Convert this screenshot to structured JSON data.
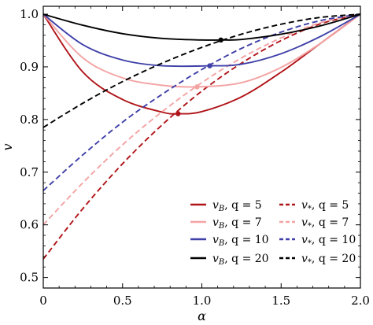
{
  "chart_data": {
    "type": "line",
    "xlabel": "α",
    "ylabel": "v",
    "xlim": [
      0,
      2.0
    ],
    "ylim": [
      0.48,
      1.015
    ],
    "xticks": [
      "0",
      "0.5",
      "1.0",
      "1.5",
      "2.0"
    ],
    "yticks": [
      "0.5",
      "0.6",
      "0.7",
      "0.8",
      "0.9",
      "1.0"
    ],
    "xtick_values": [
      0,
      0.5,
      1.0,
      1.5,
      2.0
    ],
    "ytick_values": [
      0.5,
      0.6,
      0.7,
      0.8,
      0.9,
      1.0
    ],
    "grid": false,
    "legend_position": "bottom-right",
    "series": [
      {
        "name": "v_B, q = 5",
        "legend": [
          "v",
          "B",
          ", q = 5"
        ],
        "style": "solid",
        "color": "#b01418",
        "x": [
          0,
          0.25,
          0.5,
          0.75,
          0.85,
          1.0,
          1.25,
          1.5,
          1.75,
          2.0
        ],
        "y": [
          1.0,
          0.89,
          0.838,
          0.814,
          0.811,
          0.815,
          0.843,
          0.89,
          0.945,
          1.0
        ],
        "marker": {
          "x": 0.85,
          "y": 0.811
        }
      },
      {
        "name": "v_*, q = 5",
        "legend": [
          "v",
          "*",
          ", q = 5"
        ],
        "style": "dashed",
        "color": "#b01418",
        "x": [
          0,
          0.25,
          0.5,
          0.75,
          1.0,
          1.25,
          1.5,
          1.75,
          2.0
        ],
        "y": [
          0.535,
          0.631,
          0.716,
          0.79,
          0.854,
          0.907,
          0.95,
          0.982,
          1.0
        ]
      },
      {
        "name": "v_B, q = 7",
        "legend": [
          "v",
          "B",
          ", q = 7"
        ],
        "style": "solid",
        "color": "#f4a3a3",
        "x": [
          0,
          0.25,
          0.5,
          0.75,
          0.97,
          1.25,
          1.5,
          1.75,
          2.0
        ],
        "y": [
          1.0,
          0.917,
          0.879,
          0.865,
          0.862,
          0.87,
          0.899,
          0.945,
          1.0
        ],
        "marker": {
          "x": 0.97,
          "y": 0.862
        }
      },
      {
        "name": "v_*, q = 7",
        "legend": [
          "v",
          "*",
          ", q = 7"
        ],
        "style": "dashed",
        "color": "#f4a3a3",
        "x": [
          0,
          0.25,
          0.5,
          0.75,
          1.0,
          1.25,
          1.5,
          1.75,
          2.0
        ],
        "y": [
          0.6,
          0.68,
          0.752,
          0.815,
          0.87,
          0.917,
          0.955,
          0.984,
          1.0
        ]
      },
      {
        "name": "v_B, q = 10",
        "legend": [
          "v",
          "B",
          ", q = 10"
        ],
        "style": "solid",
        "color": "#3f40a8",
        "x": [
          0,
          0.25,
          0.5,
          0.75,
          1.05,
          1.25,
          1.5,
          1.75,
          2.0
        ],
        "y": [
          1.0,
          0.942,
          0.913,
          0.902,
          0.902,
          0.905,
          0.925,
          0.958,
          1.0
        ],
        "marker": {
          "x": 1.05,
          "y": 0.902
        }
      },
      {
        "name": "v_*, q = 10",
        "legend": [
          "v",
          "*",
          ", q = 10"
        ],
        "style": "dashed",
        "color": "#3f40a8",
        "x": [
          0,
          0.25,
          0.5,
          0.75,
          1.0,
          1.25,
          1.5,
          1.75,
          2.0
        ],
        "y": [
          0.665,
          0.733,
          0.795,
          0.848,
          0.895,
          0.935,
          0.966,
          0.988,
          1.0
        ]
      },
      {
        "name": "v_B, q = 20",
        "legend": [
          "v",
          "B",
          ", q = 20"
        ],
        "style": "solid",
        "color": "#000000",
        "x": [
          0,
          0.25,
          0.5,
          0.75,
          1.0,
          1.12,
          1.25,
          1.5,
          1.75,
          2.0
        ],
        "y": [
          1.0,
          0.979,
          0.963,
          0.954,
          0.951,
          0.951,
          0.952,
          0.962,
          0.978,
          1.0
        ],
        "marker": {
          "x": 1.12,
          "y": 0.951
        }
      },
      {
        "name": "v_*, q = 20",
        "legend": [
          "v",
          "*",
          ", q = 20"
        ],
        "style": "dashed",
        "color": "#000000",
        "x": [
          0,
          0.25,
          0.5,
          0.75,
          1.0,
          1.25,
          1.5,
          1.75,
          2.0
        ],
        "y": [
          0.785,
          0.831,
          0.872,
          0.907,
          0.937,
          0.962,
          0.981,
          0.994,
          1.0
        ]
      }
    ],
    "legend_order": [
      0,
      1,
      2,
      3,
      4,
      5,
      6,
      7
    ]
  }
}
